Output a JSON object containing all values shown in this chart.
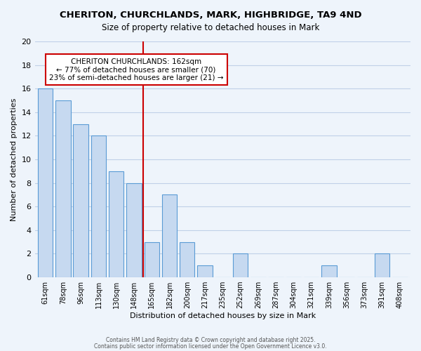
{
  "title": "CHERITON, CHURCHLANDS, MARK, HIGHBRIDGE, TA9 4ND",
  "subtitle": "Size of property relative to detached houses in Mark",
  "xlabel": "Distribution of detached houses by size in Mark",
  "ylabel": "Number of detached properties",
  "categories": [
    "61sqm",
    "78sqm",
    "96sqm",
    "113sqm",
    "130sqm",
    "148sqm",
    "165sqm",
    "182sqm",
    "200sqm",
    "217sqm",
    "235sqm",
    "252sqm",
    "269sqm",
    "287sqm",
    "304sqm",
    "321sqm",
    "339sqm",
    "356sqm",
    "373sqm",
    "391sqm",
    "408sqm"
  ],
  "values": [
    16,
    15,
    13,
    12,
    9,
    8,
    3,
    7,
    3,
    1,
    0,
    2,
    0,
    0,
    0,
    0,
    1,
    0,
    0,
    2,
    0
  ],
  "bar_color": "#c6d9f0",
  "bar_edge_color": "#5a9bd5",
  "vline_x": 5.5,
  "vline_color": "#cc0000",
  "ylim": [
    0,
    20
  ],
  "yticks": [
    0,
    2,
    4,
    6,
    8,
    10,
    12,
    14,
    16,
    18,
    20
  ],
  "annotation_title": "CHERITON CHURCHLANDS: 162sqm",
  "annotation_line1": "← 77% of detached houses are smaller (70)",
  "annotation_line2": "23% of semi-detached houses are larger (21) →",
  "annotation_box_color": "#ffffff",
  "annotation_box_edge": "#cc0000",
  "grid_color": "#c0d0e8",
  "background_color": "#eef4fb",
  "footer1": "Contains HM Land Registry data © Crown copyright and database right 2025.",
  "footer2": "Contains public sector information licensed under the Open Government Licence v3.0."
}
